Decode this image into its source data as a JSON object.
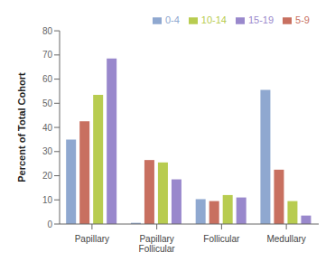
{
  "chart_data": {
    "type": "bar",
    "categories": [
      "Papillary",
      "Papillary Follicular",
      "Follicular",
      "Medullary"
    ],
    "series": [
      {
        "name": "0-4",
        "color": "#8fa8d0",
        "values": [
          35,
          0.5,
          10.3,
          55.5
        ]
      },
      {
        "name": "5-9",
        "color": "#c87060",
        "values": [
          42.5,
          26.5,
          9.5,
          22.5
        ]
      },
      {
        "name": "10-14",
        "color": "#b8cc50",
        "values": [
          53.5,
          25.5,
          12,
          9.5
        ]
      },
      {
        "name": "15-19",
        "color": "#9988cc",
        "values": [
          68.5,
          18.5,
          11,
          3.5
        ]
      }
    ],
    "ylabel": "Percent of Total Cohort",
    "ylim": [
      0,
      80
    ],
    "yticks": [
      0,
      10,
      20,
      30,
      40,
      50,
      60,
      70,
      80
    ],
    "grid": false,
    "legend": "upper right"
  }
}
